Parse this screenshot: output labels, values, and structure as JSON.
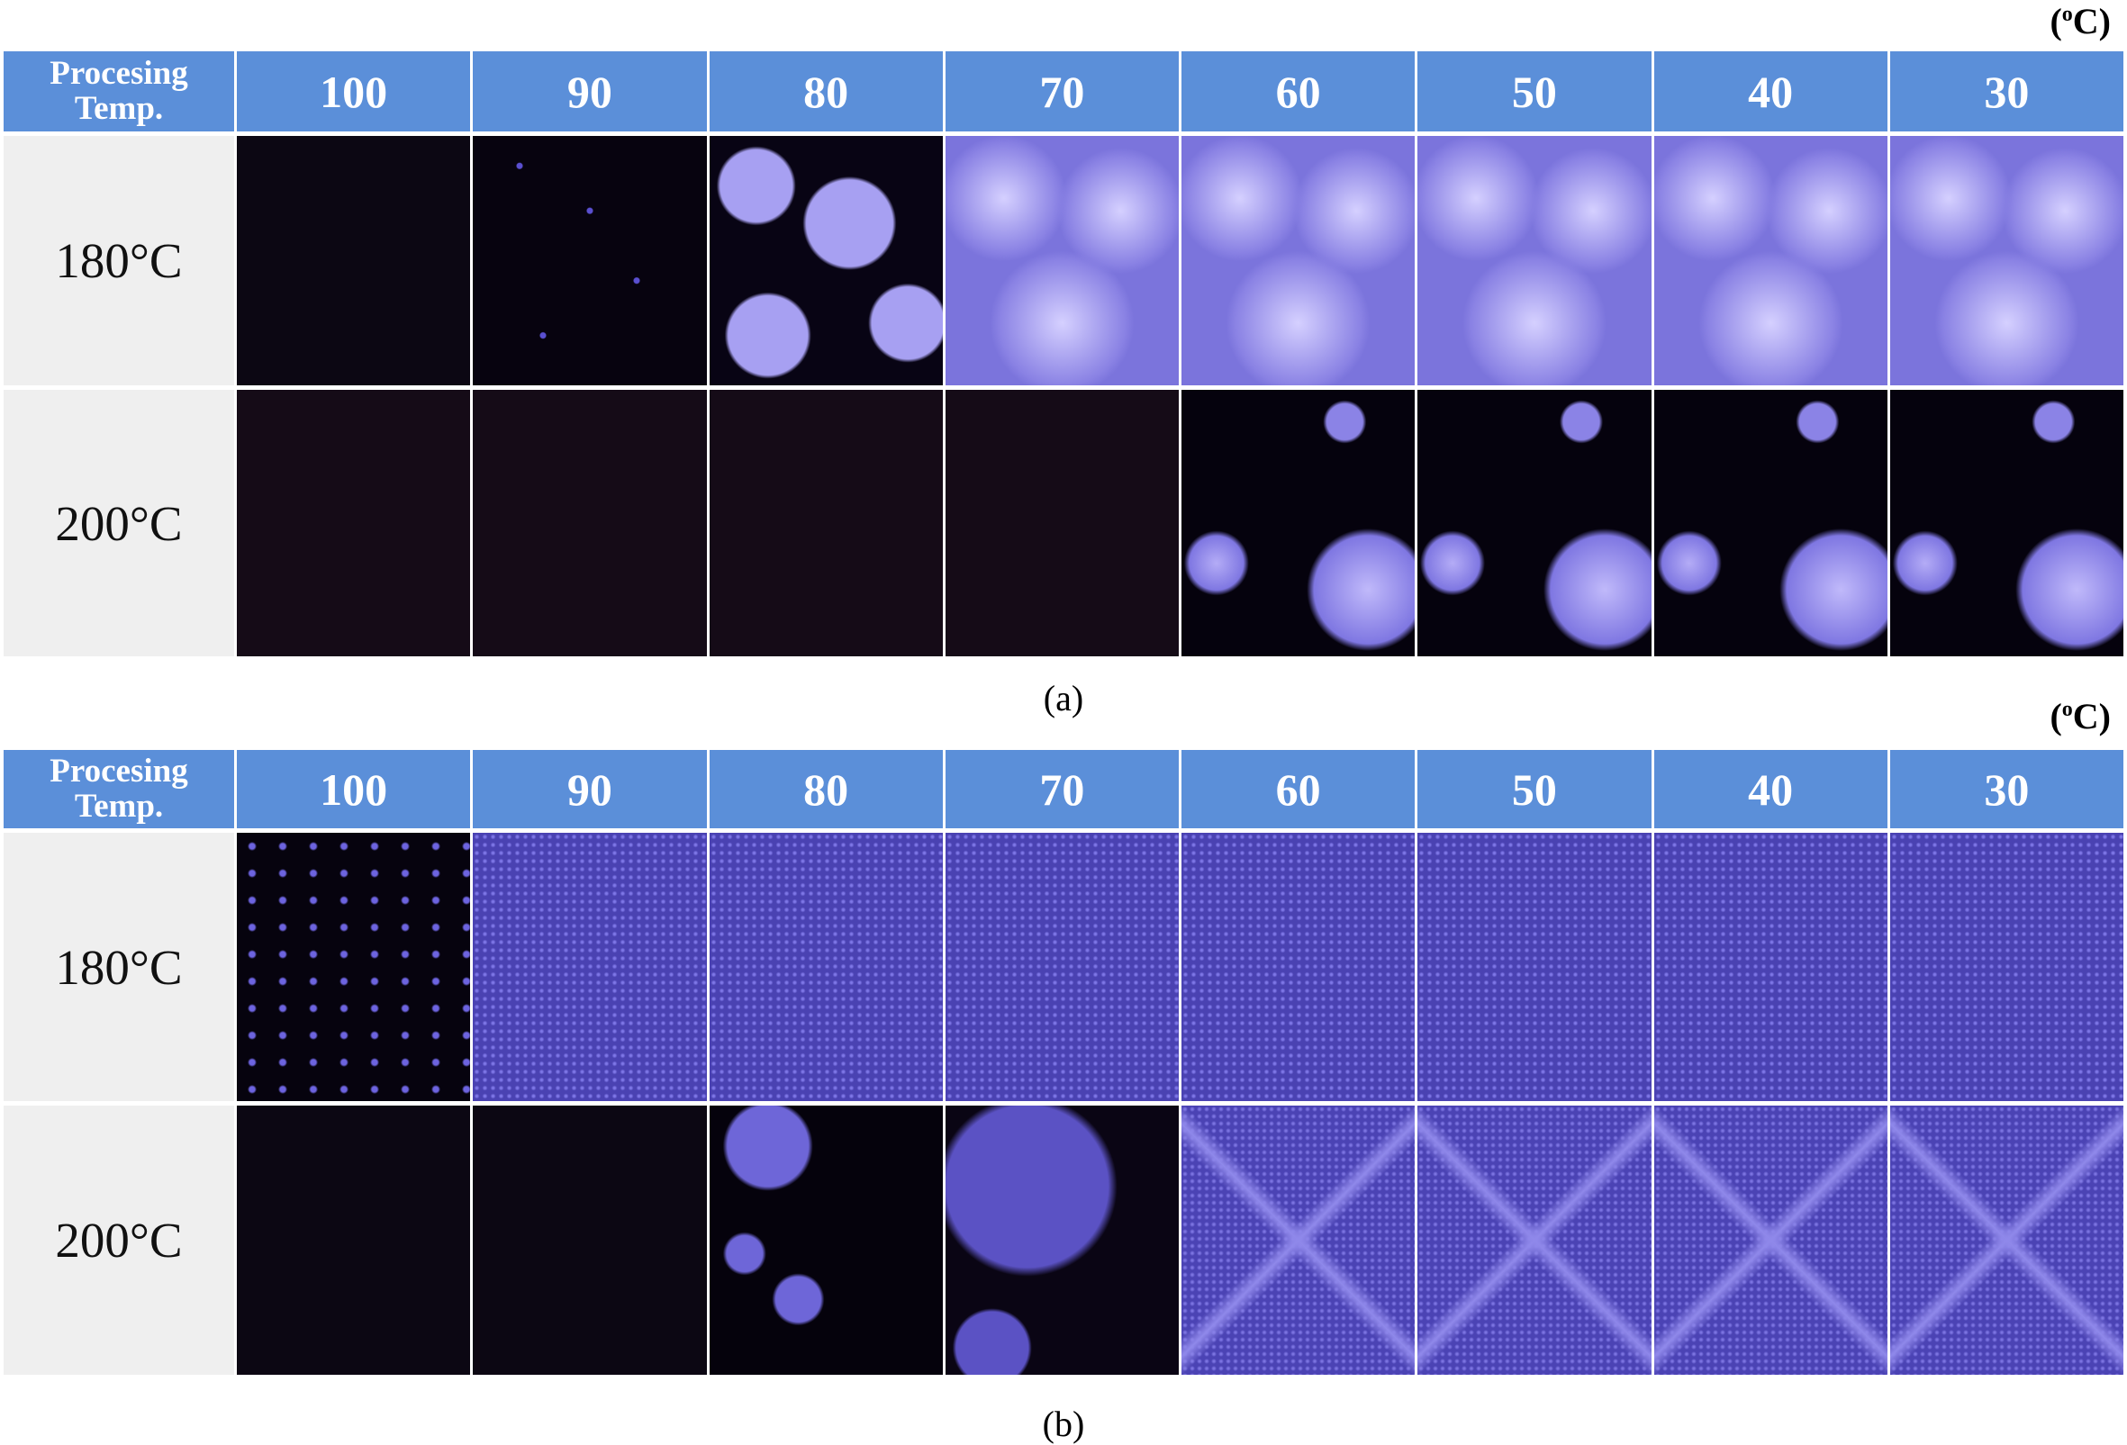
{
  "panels": [
    {
      "unit": {
        "open": "(",
        "sup": "o",
        "close": "C)"
      },
      "corner": [
        "Procesing",
        "Temp."
      ],
      "columns": [
        100,
        90,
        80,
        70,
        60,
        50,
        40,
        30
      ],
      "rows": [
        "180°C",
        "200°C"
      ],
      "caption": "(a)"
    },
    {
      "unit": {
        "open": "(",
        "sup": "o",
        "close": "C)"
      },
      "corner": [
        "Procesing",
        "Temp."
      ],
      "columns": [
        100,
        90,
        80,
        70,
        60,
        50,
        40,
        30
      ],
      "rows": [
        "180°C",
        "200°C"
      ],
      "caption": "(b)"
    }
  ]
}
